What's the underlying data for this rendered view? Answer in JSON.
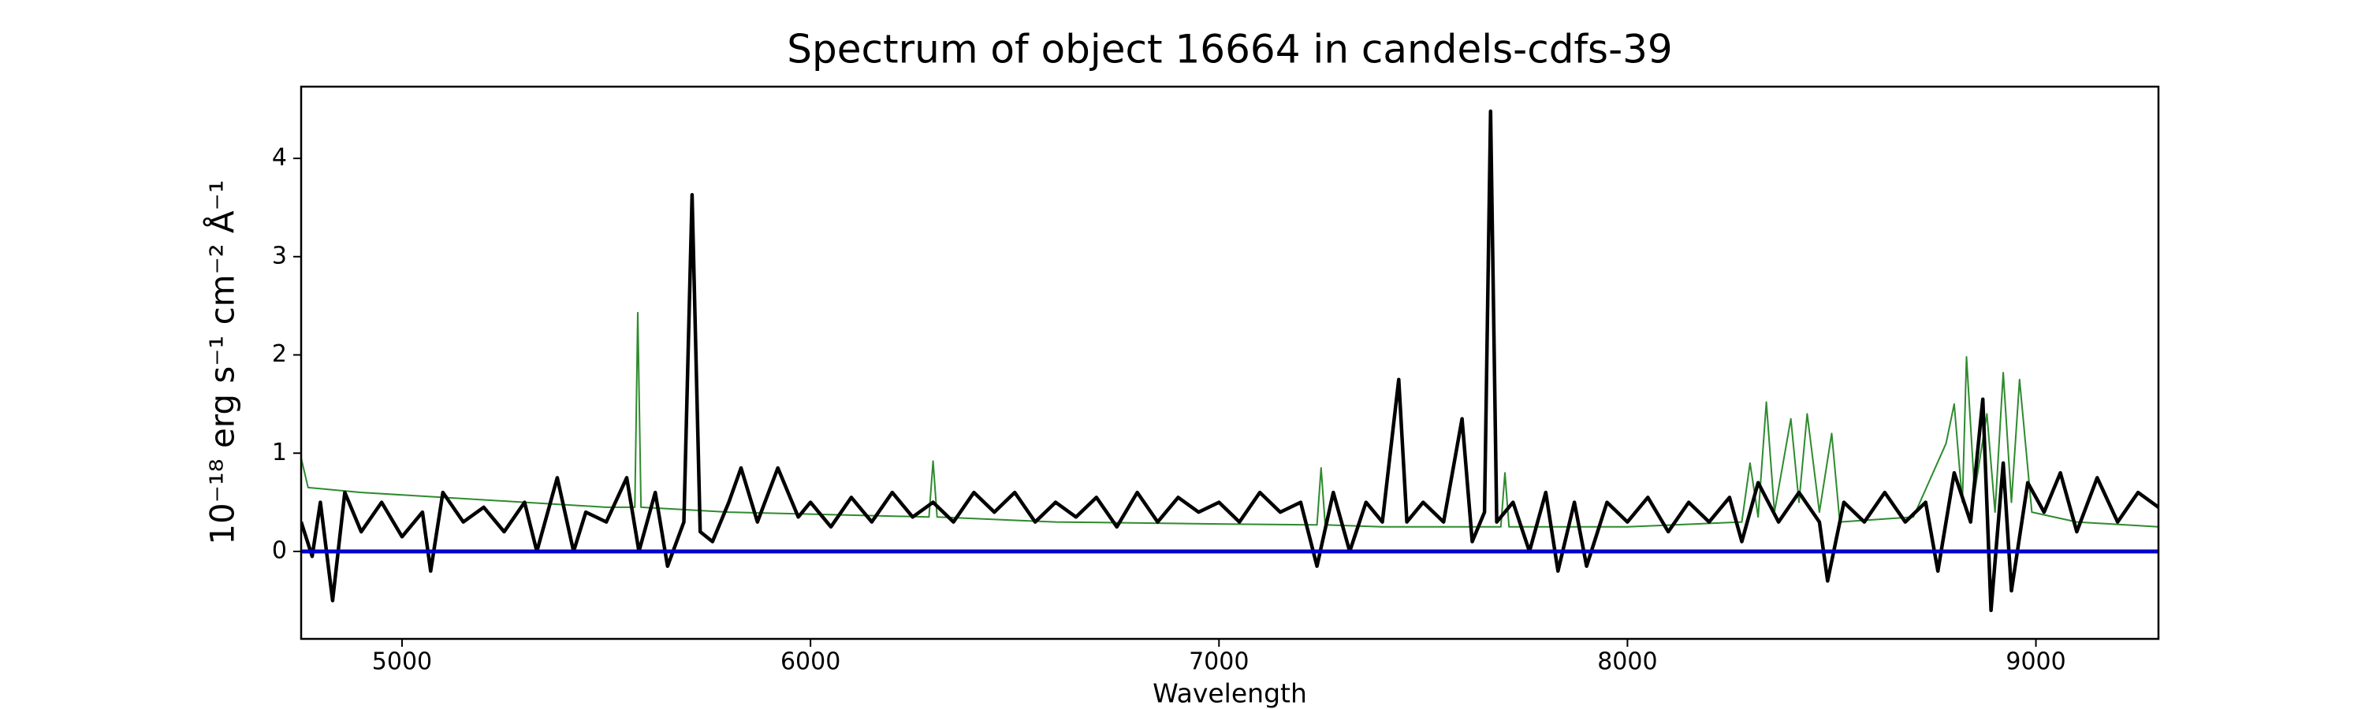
{
  "chart_data": {
    "type": "line",
    "title": "Spectrum of object 16664 in candels-cdfs-39",
    "x_label": "Wavelength",
    "y_label": "10⁻¹⁸ erg s⁻¹ cm⁻² Å⁻¹",
    "xlim": [
      4753,
      9300
    ],
    "ylim": [
      -0.89,
      4.73
    ],
    "xticks": [
      5000,
      6000,
      7000,
      8000,
      9000
    ],
    "yticks": [
      0,
      1,
      2,
      3,
      4
    ],
    "grid": false,
    "series": [
      {
        "color": "#2e8b2e",
        "width": 2,
        "x": [
          4753,
          4770,
          4900,
          5100,
          5300,
          5500,
          5570,
          5577,
          5585,
          5800,
          6000,
          6290,
          6300,
          6310,
          6600,
          7000,
          7240,
          7250,
          7260,
          7400,
          7600,
          7690,
          7700,
          7710,
          8000,
          8280,
          8300,
          8320,
          8340,
          8360,
          8400,
          8420,
          8440,
          8470,
          8500,
          8520,
          8700,
          8780,
          8800,
          8820,
          8830,
          8850,
          8880,
          8900,
          8920,
          8940,
          8960,
          8990,
          9100,
          9300
        ],
        "values": [
          0.95,
          0.65,
          0.6,
          0.55,
          0.5,
          0.45,
          0.45,
          2.43,
          0.45,
          0.4,
          0.38,
          0.35,
          0.92,
          0.35,
          0.3,
          0.28,
          0.27,
          0.85,
          0.27,
          0.25,
          0.25,
          0.25,
          0.8,
          0.25,
          0.25,
          0.3,
          0.9,
          0.35,
          1.52,
          0.4,
          1.35,
          0.5,
          1.4,
          0.4,
          1.2,
          0.3,
          0.35,
          1.1,
          1.5,
          0.5,
          1.98,
          0.6,
          1.4,
          0.4,
          1.82,
          0.5,
          1.75,
          0.4,
          0.3,
          0.25
        ]
      },
      {
        "color": "#000000",
        "width": 4.5,
        "x": [
          4753,
          4780,
          4800,
          4830,
          4860,
          4900,
          4950,
          5000,
          5050,
          5070,
          5100,
          5150,
          5200,
          5250,
          5300,
          5330,
          5380,
          5420,
          5450,
          5500,
          5550,
          5580,
          5620,
          5650,
          5690,
          5710,
          5730,
          5760,
          5800,
          5830,
          5870,
          5920,
          5970,
          6000,
          6050,
          6100,
          6150,
          6200,
          6250,
          6300,
          6350,
          6400,
          6450,
          6500,
          6550,
          6600,
          6650,
          6700,
          6750,
          6800,
          6850,
          6900,
          6950,
          7000,
          7050,
          7100,
          7150,
          7200,
          7240,
          7280,
          7320,
          7360,
          7400,
          7440,
          7460,
          7500,
          7550,
          7595,
          7620,
          7650,
          7665,
          7680,
          7720,
          7760,
          7800,
          7830,
          7870,
          7900,
          7950,
          8000,
          8050,
          8100,
          8150,
          8200,
          8250,
          8280,
          8320,
          8370,
          8420,
          8470,
          8490,
          8530,
          8580,
          8630,
          8680,
          8730,
          8760,
          8800,
          8840,
          8870,
          8890,
          8920,
          8940,
          8980,
          9020,
          9060,
          9100,
          9150,
          9200,
          9250,
          9300
        ],
        "values": [
          0.3,
          -0.05,
          0.5,
          -0.5,
          0.6,
          0.2,
          0.5,
          0.15,
          0.4,
          -0.2,
          0.6,
          0.3,
          0.45,
          0.2,
          0.5,
          0.0,
          0.75,
          0.0,
          0.4,
          0.3,
          0.75,
          0.0,
          0.6,
          -0.15,
          0.3,
          3.63,
          0.2,
          0.1,
          0.5,
          0.85,
          0.3,
          0.85,
          0.35,
          0.5,
          0.25,
          0.55,
          0.3,
          0.6,
          0.35,
          0.5,
          0.3,
          0.6,
          0.4,
          0.6,
          0.3,
          0.5,
          0.35,
          0.55,
          0.25,
          0.6,
          0.3,
          0.55,
          0.4,
          0.5,
          0.3,
          0.6,
          0.4,
          0.5,
          -0.15,
          0.6,
          0.0,
          0.5,
          0.3,
          1.75,
          0.3,
          0.5,
          0.3,
          1.35,
          0.1,
          0.4,
          4.48,
          0.3,
          0.5,
          0.0,
          0.6,
          -0.2,
          0.5,
          -0.15,
          0.5,
          0.3,
          0.55,
          0.2,
          0.5,
          0.3,
          0.55,
          0.1,
          0.7,
          0.3,
          0.6,
          0.3,
          -0.3,
          0.5,
          0.3,
          0.6,
          0.3,
          0.5,
          -0.2,
          0.8,
          0.3,
          1.55,
          -0.6,
          0.9,
          -0.4,
          0.7,
          0.4,
          0.8,
          0.2,
          0.75,
          0.3,
          0.6,
          0.45
        ]
      },
      {
        "color": "#0000cc",
        "width": 5,
        "x": [
          4753,
          9300
        ],
        "values": [
          0,
          0
        ]
      }
    ]
  }
}
